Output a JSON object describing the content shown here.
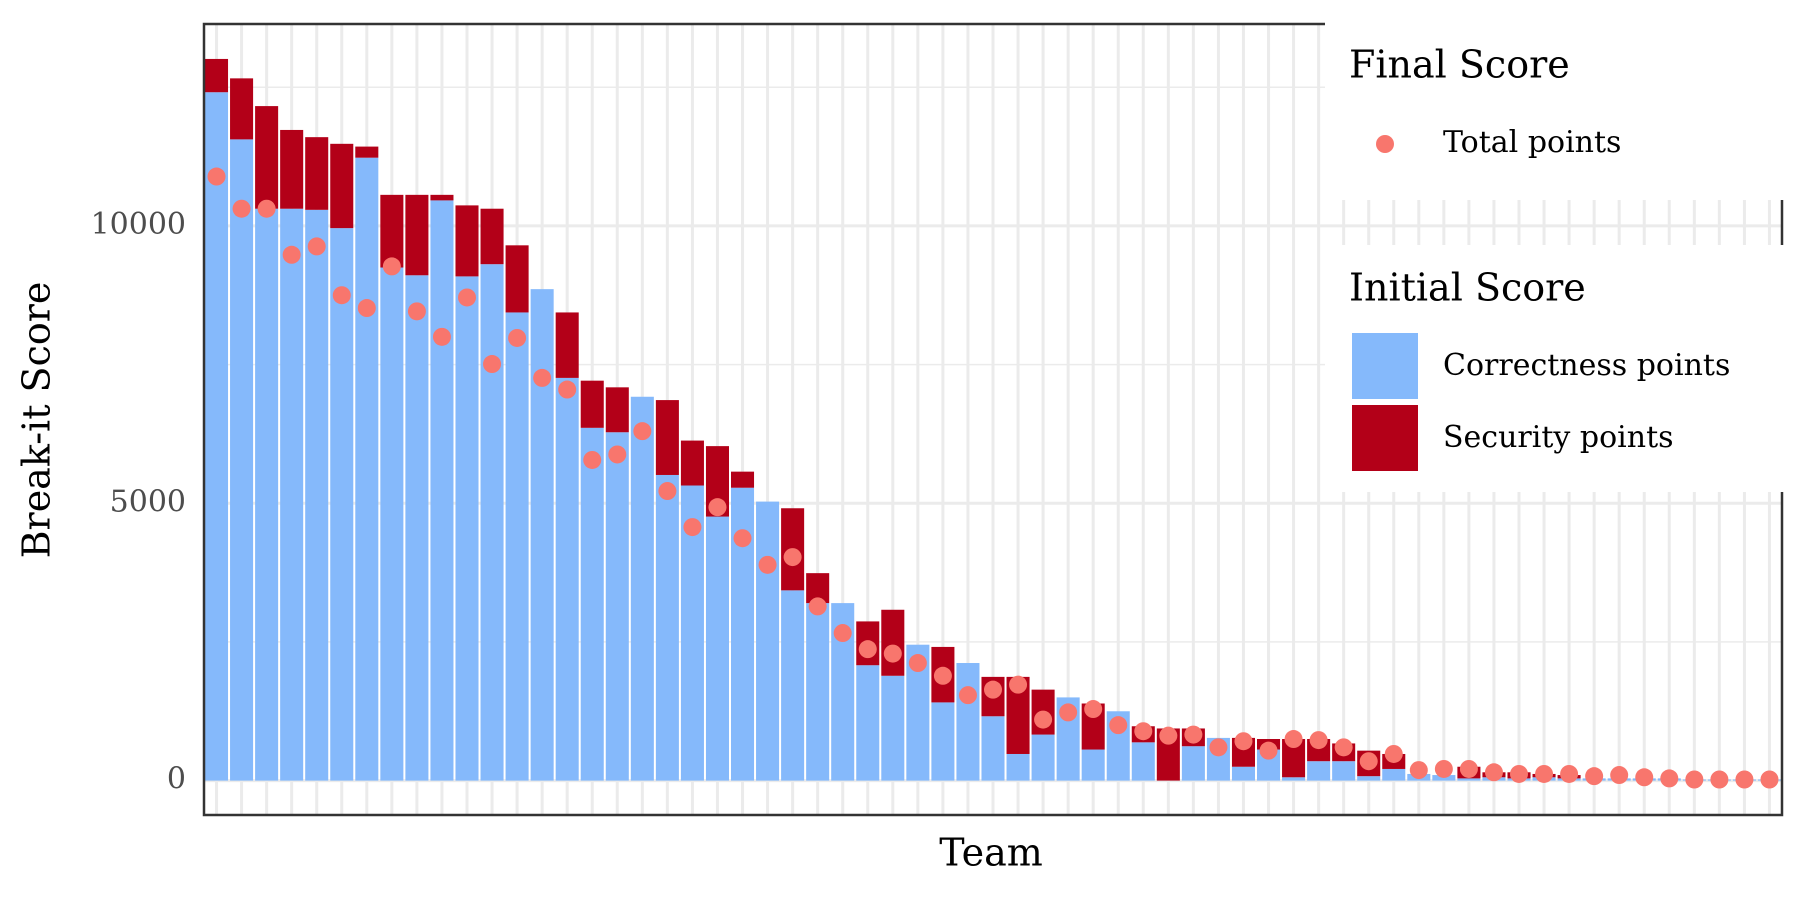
{
  "chart_data": {
    "type": "bar",
    "stacked": true,
    "x_label": "Team",
    "y_label": "Break-it Score",
    "categories": [
      null,
      null,
      null,
      null,
      null,
      null,
      null,
      null,
      null,
      null,
      null,
      null,
      null,
      null,
      null,
      null,
      null,
      null,
      null,
      null,
      null,
      null,
      null,
      null,
      null,
      null,
      null,
      null,
      null,
      null,
      null,
      null,
      null,
      null,
      null,
      null,
      null,
      null,
      null,
      null,
      null,
      null,
      null,
      null,
      null,
      null,
      null,
      null,
      null,
      null,
      null,
      null,
      null,
      null,
      null,
      null,
      null,
      null,
      null,
      null,
      null,
      null,
      null
    ],
    "series": [
      {
        "name": "Correctness points",
        "type": "bar",
        "color": "#85b9fb",
        "values": [
          12410,
          11560,
          10310,
          10310,
          10290,
          9960,
          11230,
          9250,
          9110,
          10460,
          9090,
          9310,
          8440,
          8860,
          7260,
          6360,
          6280,
          6920,
          5510,
          5320,
          4760,
          5280,
          5030,
          3430,
          3200,
          3200,
          2080,
          1890,
          2450,
          1410,
          2120,
          1160,
          480,
          830,
          1500,
          560,
          1250,
          690,
          0,
          620,
          770,
          250,
          560,
          60,
          350,
          350,
          80,
          210,
          120,
          100,
          40,
          60,
          40,
          60,
          40,
          40,
          40,
          40,
          40,
          20,
          20,
          20,
          20
        ]
      },
      {
        "name": "Security points",
        "type": "bar",
        "color": "#b30018",
        "values": [
          600,
          1100,
          1850,
          1420,
          1310,
          1520,
          200,
          1310,
          1450,
          100,
          1280,
          1000,
          1210,
          0,
          1180,
          850,
          810,
          0,
          1350,
          810,
          1270,
          290,
          0,
          1480,
          540,
          0,
          790,
          1190,
          0,
          1000,
          0,
          710,
          1390,
          810,
          0,
          830,
          0,
          290,
          940,
          320,
          0,
          520,
          190,
          690,
          400,
          320,
          460,
          270,
          0,
          0,
          210,
          90,
          110,
          60,
          60,
          0,
          0,
          0,
          0,
          0,
          0,
          0,
          0
        ]
      },
      {
        "name": "Total points",
        "type": "point",
        "color": "#f8766d",
        "values": [
          10890,
          10310,
          10310,
          9480,
          9630,
          8750,
          8520,
          9270,
          8460,
          8000,
          8710,
          7510,
          7980,
          7260,
          7050,
          5780,
          5880,
          6300,
          5220,
          4570,
          4930,
          4370,
          3890,
          4030,
          3140,
          2660,
          2370,
          2290,
          2120,
          1890,
          1540,
          1640,
          1730,
          1100,
          1230,
          1290,
          1000,
          890,
          810,
          830,
          600,
          710,
          540,
          750,
          730,
          600,
          350,
          480,
          190,
          210,
          210,
          150,
          120,
          120,
          120,
          80,
          100,
          60,
          40,
          20,
          20,
          20,
          20
        ]
      }
    ],
    "legend_groups": [
      {
        "title": "Final Score",
        "series": [
          2
        ]
      },
      {
        "title": "Initial Score",
        "series": [
          0,
          1
        ]
      }
    ],
    "legend": "right",
    "ylim": [
      -620,
      13640
    ],
    "yticks": [
      0,
      5000,
      10000
    ],
    "grid": true
  }
}
